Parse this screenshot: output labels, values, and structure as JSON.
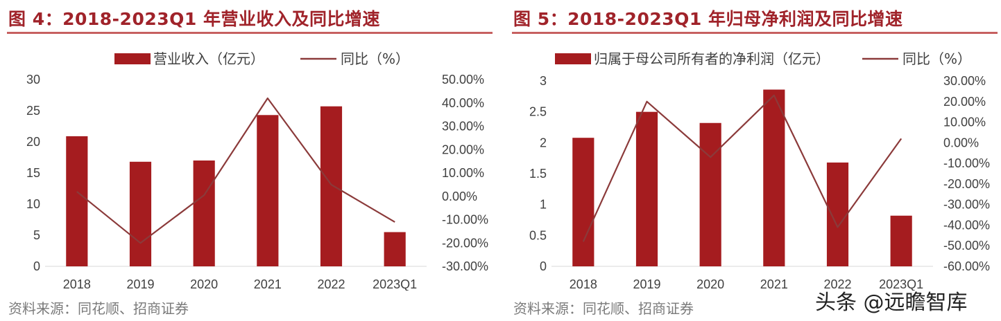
{
  "chart_data": [
    {
      "type": "bar",
      "title": "图 4：2018-2023Q1 年营业收入及同比增速",
      "source": "资料来源：同花顺、招商证券",
      "categories": [
        "2018",
        "2019",
        "2020",
        "2021",
        "2022",
        "2023Q1"
      ],
      "series": [
        {
          "name": "营业收入（亿元）",
          "type": "bar",
          "axis": "left",
          "values": [
            20.9,
            16.8,
            17.0,
            24.3,
            25.7,
            5.5
          ]
        },
        {
          "name": "同比（%）",
          "type": "line",
          "axis": "right",
          "values": [
            2.0,
            -20.0,
            0.5,
            42.0,
            5.0,
            -11.0
          ]
        }
      ],
      "y_left": {
        "min": 0,
        "max": 30,
        "ticks": [
          "0",
          "5",
          "10",
          "15",
          "20",
          "25",
          "30"
        ]
      },
      "y_right": {
        "min": -30,
        "max": 50,
        "ticks": [
          "-30.00%",
          "-20.00%",
          "-10.00%",
          "0.00%",
          "10.00%",
          "20.00%",
          "30.00%",
          "40.00%",
          "50.00%"
        ]
      },
      "legend": {
        "bar": "营业收入（亿元）",
        "line": "同比（%）"
      }
    },
    {
      "type": "bar",
      "title": "图 5：2018-2023Q1 年归母净利润及同比增速",
      "source": "资料来源：同花顺、招商证券",
      "categories": [
        "2018",
        "2019",
        "2020",
        "2021",
        "2022",
        "2023Q1"
      ],
      "series": [
        {
          "name": "归属于母公司所有者的净利润（亿元）",
          "type": "bar",
          "axis": "left",
          "values": [
            2.08,
            2.5,
            2.32,
            2.86,
            1.68,
            0.82
          ]
        },
        {
          "name": "同比（%）",
          "type": "line",
          "axis": "right",
          "values": [
            -48.0,
            20.0,
            -7.0,
            23.0,
            -41.0,
            2.0
          ]
        }
      ],
      "y_left": {
        "min": 0,
        "max": 3,
        "ticks": [
          "0",
          "0.5",
          "1",
          "1.5",
          "2",
          "2.5",
          "3"
        ]
      },
      "y_right": {
        "min": -60,
        "max": 30,
        "ticks": [
          "-60.00%",
          "-50.00%",
          "-40.00%",
          "-30.00%",
          "-20.00%",
          "-10.00%",
          "0.00%",
          "10.00%",
          "20.00%",
          "30.00%"
        ]
      },
      "legend": {
        "bar": "归属于母公司所有者的净利润（亿元）",
        "line": "同比（%）"
      }
    }
  ],
  "watermark": "头条 @远瞻智库",
  "colors": {
    "bar": "#a51c1f",
    "line": "#8b3a3a",
    "title": "#a0232a",
    "axis_text": "#404040"
  }
}
